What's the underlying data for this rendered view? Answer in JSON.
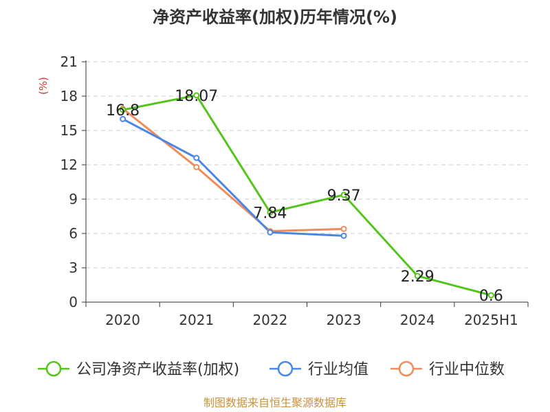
{
  "chart_data": {
    "type": "line",
    "title": "净资产收益率(加权)历年情况(%)",
    "ylabel": "(%)",
    "categories": [
      "2020",
      "2021",
      "2022",
      "2023",
      "2024",
      "2025H1"
    ],
    "ylim": [
      0,
      21
    ],
    "yticks": [
      0,
      3,
      6,
      9,
      12,
      15,
      18,
      21
    ],
    "grid": true,
    "legend_position": "bottom",
    "series": [
      {
        "name": "公司净资产收益率(加权)",
        "color": "#52c41a",
        "values": [
          16.8,
          18.07,
          7.84,
          9.37,
          2.29,
          0.6
        ],
        "labels": [
          "16.8",
          "18.07",
          "7.84",
          "9.37",
          "2.29",
          "0.6"
        ]
      },
      {
        "name": "行业均值",
        "color": "#4a86e8",
        "values": [
          16.0,
          12.6,
          6.1,
          5.8,
          null,
          null
        ]
      },
      {
        "name": "行业中位数",
        "color": "#f08c5a",
        "values": [
          16.9,
          11.8,
          6.2,
          6.4,
          null,
          null
        ]
      }
    ]
  },
  "source": "制图数据来自恒生聚源数据库",
  "colors": {
    "axis": "#333333",
    "grid": "#cccccc",
    "unit": "#e03030",
    "source": "#c8923a"
  }
}
